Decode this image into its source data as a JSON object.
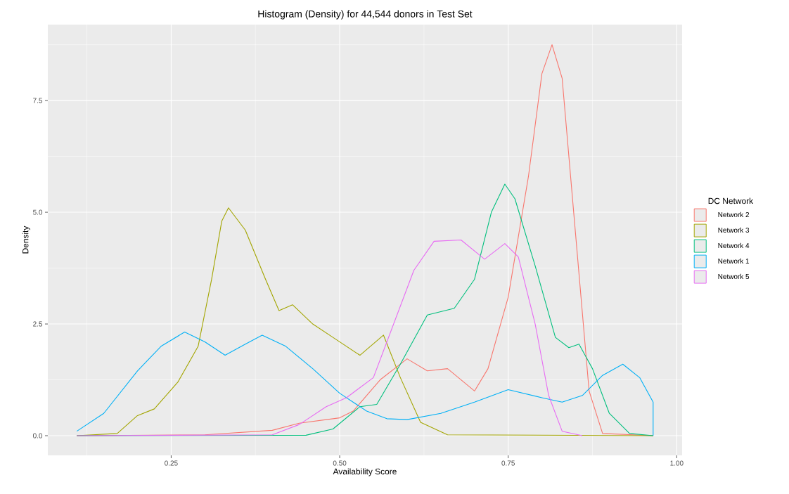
{
  "chart_data": {
    "type": "line",
    "title": "Histogram (Density) for 44,544 donors in Test Set",
    "xlabel": "Availability Score",
    "ylabel": "Density",
    "legend_title": "DC Network",
    "legend": "right",
    "grid": true,
    "marker": "none",
    "line_style": "solid",
    "xlim": [
      0.067,
      1.008
    ],
    "ylim": [
      -0.44,
      9.2
    ],
    "xticks": [
      {
        "value": 0.25,
        "label": "0.25"
      },
      {
        "value": 0.5,
        "label": "0.50"
      },
      {
        "value": 0.75,
        "label": "0.75"
      },
      {
        "value": 1.0,
        "label": "1.00"
      }
    ],
    "yticks": [
      {
        "value": 0.0,
        "label": "0.0"
      },
      {
        "value": 2.5,
        "label": "2.5"
      },
      {
        "value": 5.0,
        "label": "5.0"
      },
      {
        "value": 7.5,
        "label": "7.5"
      }
    ],
    "series": [
      {
        "name": "Network 2",
        "color": "#f8766d",
        "x": [
          0.11,
          0.3,
          0.4,
          0.44,
          0.5,
          0.52,
          0.56,
          0.6,
          0.63,
          0.66,
          0.7,
          0.72,
          0.75,
          0.78,
          0.8,
          0.815,
          0.83,
          0.85,
          0.87,
          0.89,
          0.965
        ],
        "values": [
          0,
          0.02,
          0.12,
          0.28,
          0.4,
          0.55,
          1.25,
          1.72,
          1.45,
          1.5,
          1.0,
          1.5,
          3.1,
          5.8,
          8.1,
          8.75,
          8.0,
          4.5,
          1.0,
          0.05,
          0
        ]
      },
      {
        "name": "Network 3",
        "color": "#a3a500",
        "x": [
          0.11,
          0.17,
          0.2,
          0.225,
          0.26,
          0.29,
          0.31,
          0.325,
          0.335,
          0.36,
          0.39,
          0.41,
          0.43,
          0.46,
          0.49,
          0.53,
          0.565,
          0.59,
          0.62,
          0.66,
          0.965
        ],
        "values": [
          0,
          0.05,
          0.45,
          0.6,
          1.2,
          2.0,
          3.5,
          4.8,
          5.1,
          4.6,
          3.5,
          2.8,
          2.93,
          2.5,
          2.2,
          1.8,
          2.25,
          1.3,
          0.3,
          0.02,
          0
        ]
      },
      {
        "name": "Network 4",
        "color": "#00bf7d",
        "x": [
          0.11,
          0.45,
          0.49,
          0.53,
          0.555,
          0.59,
          0.63,
          0.67,
          0.7,
          0.725,
          0.745,
          0.76,
          0.79,
          0.82,
          0.84,
          0.855,
          0.875,
          0.9,
          0.93,
          0.965
        ],
        "values": [
          0,
          0.01,
          0.15,
          0.65,
          0.7,
          1.6,
          2.7,
          2.85,
          3.5,
          5.0,
          5.63,
          5.3,
          3.8,
          2.2,
          1.97,
          2.05,
          1.5,
          0.5,
          0.05,
          0
        ]
      },
      {
        "name": "Network 1",
        "color": "#00b0f6",
        "x": [
          0.11,
          0.15,
          0.2,
          0.235,
          0.27,
          0.3,
          0.33,
          0.36,
          0.385,
          0.42,
          0.46,
          0.5,
          0.54,
          0.57,
          0.6,
          0.65,
          0.7,
          0.75,
          0.8,
          0.83,
          0.86,
          0.89,
          0.92,
          0.945,
          0.965,
          0.965
        ],
        "values": [
          0.1,
          0.5,
          1.45,
          2.0,
          2.32,
          2.1,
          1.8,
          2.05,
          2.25,
          2.0,
          1.5,
          0.95,
          0.55,
          0.38,
          0.36,
          0.5,
          0.75,
          1.03,
          0.85,
          0.75,
          0.9,
          1.35,
          1.6,
          1.3,
          0.75,
          0
        ]
      },
      {
        "name": "Network 5",
        "color": "#e76bf3",
        "x": [
          0.11,
          0.4,
          0.44,
          0.48,
          0.51,
          0.55,
          0.58,
          0.61,
          0.64,
          0.68,
          0.715,
          0.745,
          0.765,
          0.79,
          0.81,
          0.83,
          0.86
        ],
        "values": [
          0,
          0.02,
          0.25,
          0.65,
          0.85,
          1.3,
          2.5,
          3.7,
          4.35,
          4.38,
          3.95,
          4.3,
          4.0,
          2.5,
          0.9,
          0.1,
          0
        ]
      }
    ]
  }
}
